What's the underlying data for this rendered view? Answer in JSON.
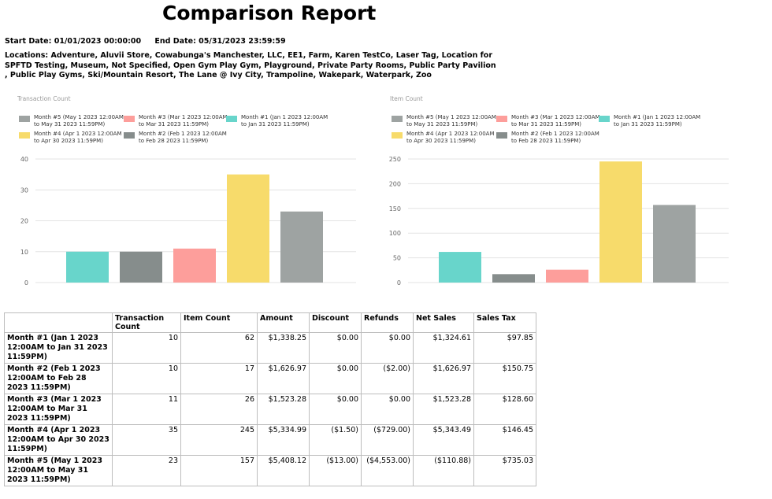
{
  "report": {
    "title": "Comparison Report",
    "start_date": "Start Date: 01/01/2023 00:00:00",
    "end_date": "End Date: 05/31/2023 23:59:59",
    "locations": "Locations: Adventure, Aluvii Store, Cowabunga's Manchester, LLC, EE1, Farm, Karen TestCo, Laser Tag, Location for SPFTD Testing, Museum, Not Specified, Open Gym Play Gym, Playground, Private Party Rooms, Public Party Pavilion , Public Play Gyms, Ski/Mountain Resort, The Lane @ Ivy City, Trampoline, Wakepark, Waterpark, Zoo"
  },
  "legend": [
    {
      "line1": "Month #5 (May  1 2023 12:00AM",
      "line2": "to May 31 2023 11:59PM)",
      "color": "#9ea3a2"
    },
    {
      "line1": "Month #3 (Mar  1 2023 12:00AM",
      "line2": "to Mar 31 2023 11:59PM)",
      "color": "#fd9e9b"
    },
    {
      "line1": "Month #1 (Jan  1 2023 12:00AM",
      "line2": "to Jan 31 2023 11:59PM)",
      "color": "#68d5cb"
    },
    {
      "line1": "Month #4 (Apr  1 2023 12:00AM",
      "line2": "to Apr 30 2023 11:59PM)",
      "color": "#f7db6b"
    },
    {
      "line1": "Month #2 (Feb  1 2023 12:00AM",
      "line2": "to Feb 28 2023 11:59PM)",
      "color": "#868d8c"
    }
  ],
  "chart_data": [
    {
      "type": "bar",
      "title": "Transaction Count",
      "categories": [
        "Month #1",
        "Month #2",
        "Month #3",
        "Month #4",
        "Month #5"
      ],
      "values": [
        10,
        10,
        11,
        35,
        23
      ],
      "colors": [
        "#68d5cb",
        "#868d8c",
        "#fd9e9b",
        "#f7db6b",
        "#9ea3a2"
      ],
      "ylim": [
        0,
        40
      ],
      "yticks": [
        0,
        10,
        20,
        30,
        40
      ],
      "grid": true,
      "legend_position": "top"
    },
    {
      "type": "bar",
      "title": "Item Count",
      "categories": [
        "Month #1",
        "Month #2",
        "Month #3",
        "Month #4",
        "Month #5"
      ],
      "values": [
        62,
        17,
        26,
        245,
        157
      ],
      "colors": [
        "#68d5cb",
        "#868d8c",
        "#fd9e9b",
        "#f7db6b",
        "#9ea3a2"
      ],
      "ylim": [
        0,
        250
      ],
      "yticks": [
        0,
        50,
        100,
        150,
        200,
        250
      ],
      "grid": true,
      "legend_position": "top"
    }
  ],
  "table": {
    "headers": [
      "",
      "Transaction Count",
      "Item Count",
      "Amount",
      "Discount",
      "Refunds",
      "Net Sales",
      "Sales Tax"
    ],
    "rows": [
      {
        "label": "Month #1 (Jan  1 2023 12:00AM to Jan 31 2023 11:59PM)",
        "cells": [
          "10",
          "62",
          "$1,338.25",
          "$0.00",
          "$0.00",
          "$1,324.61",
          "$97.85"
        ]
      },
      {
        "label": "Month #2 (Feb  1 2023 12:00AM to Feb 28 2023 11:59PM)",
        "cells": [
          "10",
          "17",
          "$1,626.97",
          "$0.00",
          "($2.00)",
          "$1,626.97",
          "$150.75"
        ]
      },
      {
        "label": "Month #3 (Mar  1 2023 12:00AM to Mar 31 2023 11:59PM)",
        "cells": [
          "11",
          "26",
          "$1,523.28",
          "$0.00",
          "$0.00",
          "$1,523.28",
          "$128.60"
        ]
      },
      {
        "label": "Month #4 (Apr  1 2023 12:00AM to Apr 30 2023 11:59PM)",
        "cells": [
          "35",
          "245",
          "$5,334.99",
          "($1.50)",
          "($729.00)",
          "$5,343.49",
          "$146.45"
        ]
      },
      {
        "label": "Month #5 (May  1 2023 12:00AM to May 31 2023 11:59PM)",
        "cells": [
          "23",
          "157",
          "$5,408.12",
          "($13.00)",
          "($4,553.00)",
          "($110.88)",
          "$735.03"
        ]
      }
    ]
  }
}
